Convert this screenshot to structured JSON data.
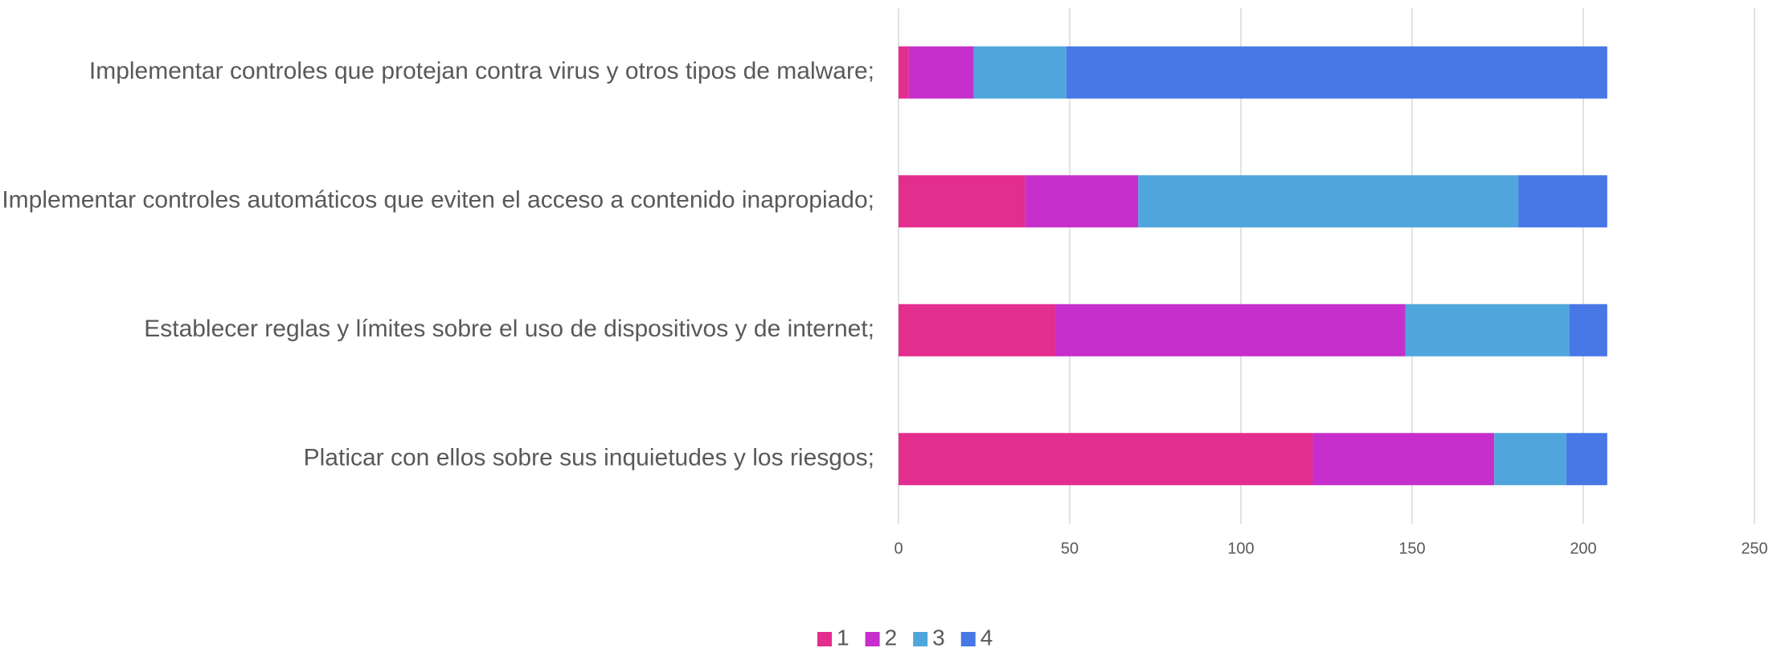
{
  "chart_data": {
    "type": "stacked_barh",
    "categories": [
      "Implementar controles que protejan contra virus y otros tipos de malware;",
      "Implementar controles automáticos que eviten el acceso a contenido inapropiado;",
      "Establecer reglas y límites sobre el uso de dispositivos y de internet;",
      "Platicar con ellos sobre sus inquietudes y los riesgos;"
    ],
    "series": [
      {
        "name": "1",
        "color": "#e32d8f",
        "values": [
          3,
          37,
          46,
          121
        ]
      },
      {
        "name": "2",
        "color": "#c62fcc",
        "values": [
          19,
          33,
          102,
          53
        ]
      },
      {
        "name": "3",
        "color": "#4fa6dc",
        "values": [
          27,
          111,
          48,
          21
        ]
      },
      {
        "name": "4",
        "color": "#4878e6",
        "values": [
          158,
          26,
          11,
          12
        ]
      }
    ],
    "xlim": [
      0,
      250
    ],
    "xticks": [
      0,
      50,
      100,
      150,
      200,
      250
    ],
    "grid": true,
    "legend": "bottom"
  }
}
